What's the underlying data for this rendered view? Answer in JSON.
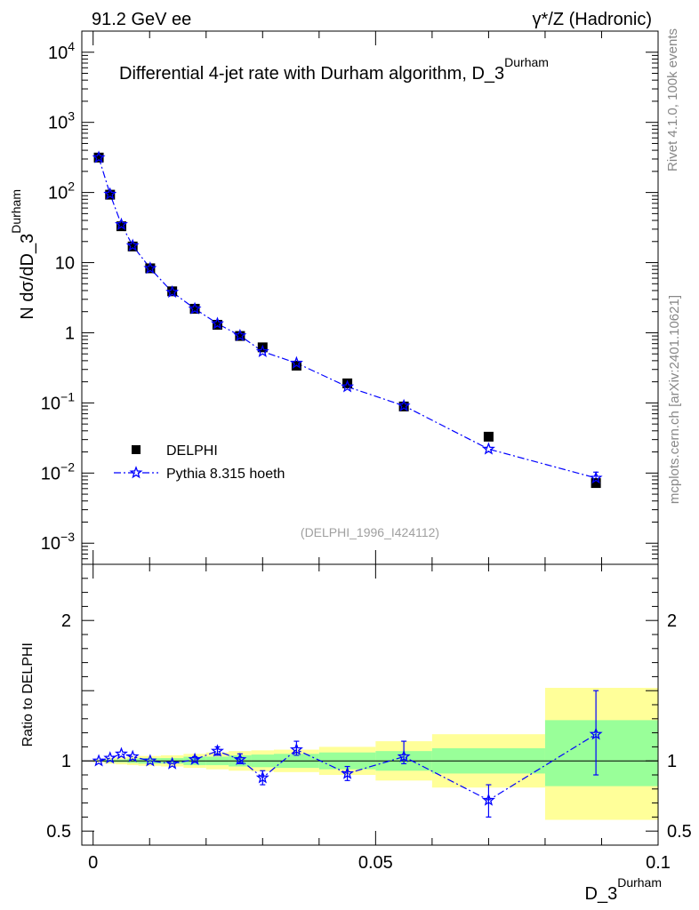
{
  "header": {
    "left": "91.2 GeV ee",
    "right": "γ*/Z (Hadronic)"
  },
  "side_labels": {
    "rivet": "Rivet 4.1.0,  100k events",
    "mcplots": "mcplots.cern.ch [arXiv:2401.10621]"
  },
  "colors": {
    "data": "#000000",
    "mc": "#0000ff",
    "band_inner": "#99ff99",
    "band_outer": "#ffff99",
    "watermark": "#a0a0a0"
  },
  "chart_data": [
    {
      "type": "scatter",
      "title": "Differential 4-jet rate with Durham algorithm, D_3",
      "title_sup": "Durham",
      "ylabel": "N  dσ/dD_3",
      "ylabel_sup": "Durham",
      "ylog": true,
      "ylim": [
        0.0005,
        20000
      ],
      "xlim": [
        -0.002,
        0.1
      ],
      "y_ticks": [
        {
          "value": 10000,
          "base": "10",
          "exp": "4"
        },
        {
          "value": 1000,
          "base": "10",
          "exp": "3"
        },
        {
          "value": 100,
          "base": "10",
          "exp": "2"
        },
        {
          "value": 10,
          "base": "10",
          "exp": ""
        },
        {
          "value": 1,
          "base": "1",
          "exp": ""
        },
        {
          "value": 0.1,
          "base": "10",
          "exp": "−1"
        },
        {
          "value": 0.01,
          "base": "10",
          "exp": "−2"
        },
        {
          "value": 0.001,
          "base": "10",
          "exp": "−3"
        }
      ],
      "x": [
        0.001,
        0.003,
        0.005,
        0.007,
        0.0101,
        0.014,
        0.018,
        0.022,
        0.026,
        0.03,
        0.036,
        0.045,
        0.055,
        0.07,
        0.089
      ],
      "series": [
        {
          "name": "DELPHI",
          "style": "square",
          "values": [
            315,
            93,
            33,
            17,
            8.3,
            3.9,
            2.2,
            1.3,
            0.9,
            0.62,
            0.34,
            0.19,
            0.089,
            0.033,
            0.0072
          ]
        },
        {
          "name": "Pythia 8.315 hoeth",
          "style": "star-dashdot",
          "values": [
            315,
            95,
            35,
            17.5,
            8.3,
            3.8,
            2.2,
            1.35,
            0.91,
            0.54,
            0.37,
            0.17,
            0.091,
            0.022,
            0.0085
          ],
          "err_low": [
            0,
            0,
            0,
            0,
            0,
            0,
            0,
            0,
            0,
            0,
            0,
            0,
            0,
            0,
            0.0075
          ],
          "err_high": [
            0,
            0,
            0,
            0,
            0,
            0,
            0,
            0,
            0,
            0,
            0,
            0,
            0,
            0,
            0.0103
          ]
        }
      ],
      "watermark": "(DELPHI_1996_I424112)",
      "legend_position": "lower-left"
    },
    {
      "type": "scatter",
      "ylabel": "Ratio to DELPHI",
      "xlabel": "D_3",
      "xlabel_sup": "Durham",
      "ylim": [
        0.4,
        2.4
      ],
      "xlim": [
        -0.002,
        0.1
      ],
      "y_ticks": [
        {
          "value": 0.5,
          "label": "0.5"
        },
        {
          "value": 1,
          "label": "1"
        },
        {
          "value": 2,
          "label": "2"
        }
      ],
      "x_ticks": [
        {
          "value": 0,
          "label": "0"
        },
        {
          "value": 0.05,
          "label": "0.05"
        },
        {
          "value": 0.1,
          "label": "0.1"
        }
      ],
      "bands": [
        {
          "x0": 0.0,
          "x1": 0.002,
          "outer": [
            0.99,
            1.01
          ],
          "inner": [
            0.995,
            1.005
          ]
        },
        {
          "x0": 0.002,
          "x1": 0.004,
          "outer": [
            0.98,
            1.02
          ],
          "inner": [
            0.99,
            1.01
          ]
        },
        {
          "x0": 0.004,
          "x1": 0.006,
          "outer": [
            0.975,
            1.025
          ],
          "inner": [
            0.99,
            1.01
          ]
        },
        {
          "x0": 0.006,
          "x1": 0.008,
          "outer": [
            0.97,
            1.03
          ],
          "inner": [
            0.985,
            1.015
          ]
        },
        {
          "x0": 0.008,
          "x1": 0.012,
          "outer": [
            0.965,
            1.035
          ],
          "inner": [
            0.98,
            1.02
          ]
        },
        {
          "x0": 0.012,
          "x1": 0.016,
          "outer": [
            0.96,
            1.04
          ],
          "inner": [
            0.98,
            1.02
          ]
        },
        {
          "x0": 0.016,
          "x1": 0.02,
          "outer": [
            0.95,
            1.05
          ],
          "inner": [
            0.97,
            1.03
          ]
        },
        {
          "x0": 0.02,
          "x1": 0.024,
          "outer": [
            0.94,
            1.06
          ],
          "inner": [
            0.97,
            1.03
          ]
        },
        {
          "x0": 0.024,
          "x1": 0.028,
          "outer": [
            0.93,
            1.07
          ],
          "inner": [
            0.96,
            1.04
          ]
        },
        {
          "x0": 0.028,
          "x1": 0.032,
          "outer": [
            0.925,
            1.075
          ],
          "inner": [
            0.955,
            1.045
          ]
        },
        {
          "x0": 0.032,
          "x1": 0.04,
          "outer": [
            0.92,
            1.08
          ],
          "inner": [
            0.95,
            1.05
          ]
        },
        {
          "x0": 0.04,
          "x1": 0.05,
          "outer": [
            0.9,
            1.1
          ],
          "inner": [
            0.94,
            1.06
          ]
        },
        {
          "x0": 0.05,
          "x1": 0.06,
          "outer": [
            0.86,
            1.14
          ],
          "inner": [
            0.93,
            1.07
          ]
        },
        {
          "x0": 0.06,
          "x1": 0.08,
          "outer": [
            0.81,
            1.19
          ],
          "inner": [
            0.91,
            1.09
          ]
        },
        {
          "x0": 0.08,
          "x1": 0.1,
          "outer": [
            0.58,
            1.52
          ],
          "inner": [
            0.82,
            1.29
          ]
        }
      ],
      "x": [
        0.001,
        0.003,
        0.005,
        0.007,
        0.0101,
        0.014,
        0.018,
        0.022,
        0.026,
        0.03,
        0.036,
        0.045,
        0.055,
        0.07,
        0.089
      ],
      "series": [
        {
          "name": "Pythia 8.315 hoeth / DELPHI",
          "values": [
            1.0,
            1.02,
            1.05,
            1.03,
            1.0,
            0.98,
            1.01,
            1.07,
            1.01,
            0.88,
            1.08,
            0.91,
            1.03,
            0.72,
            1.19
          ],
          "err_low": [
            0.99,
            1.01,
            1.04,
            1.02,
            0.99,
            0.97,
            0.99,
            1.04,
            0.98,
            0.83,
            1.04,
            0.86,
            0.98,
            0.6,
            0.9
          ],
          "err_high": [
            1.01,
            1.03,
            1.06,
            1.04,
            1.01,
            0.99,
            1.03,
            1.1,
            1.05,
            0.93,
            1.14,
            0.96,
            1.14,
            0.83,
            1.5
          ]
        }
      ]
    }
  ]
}
